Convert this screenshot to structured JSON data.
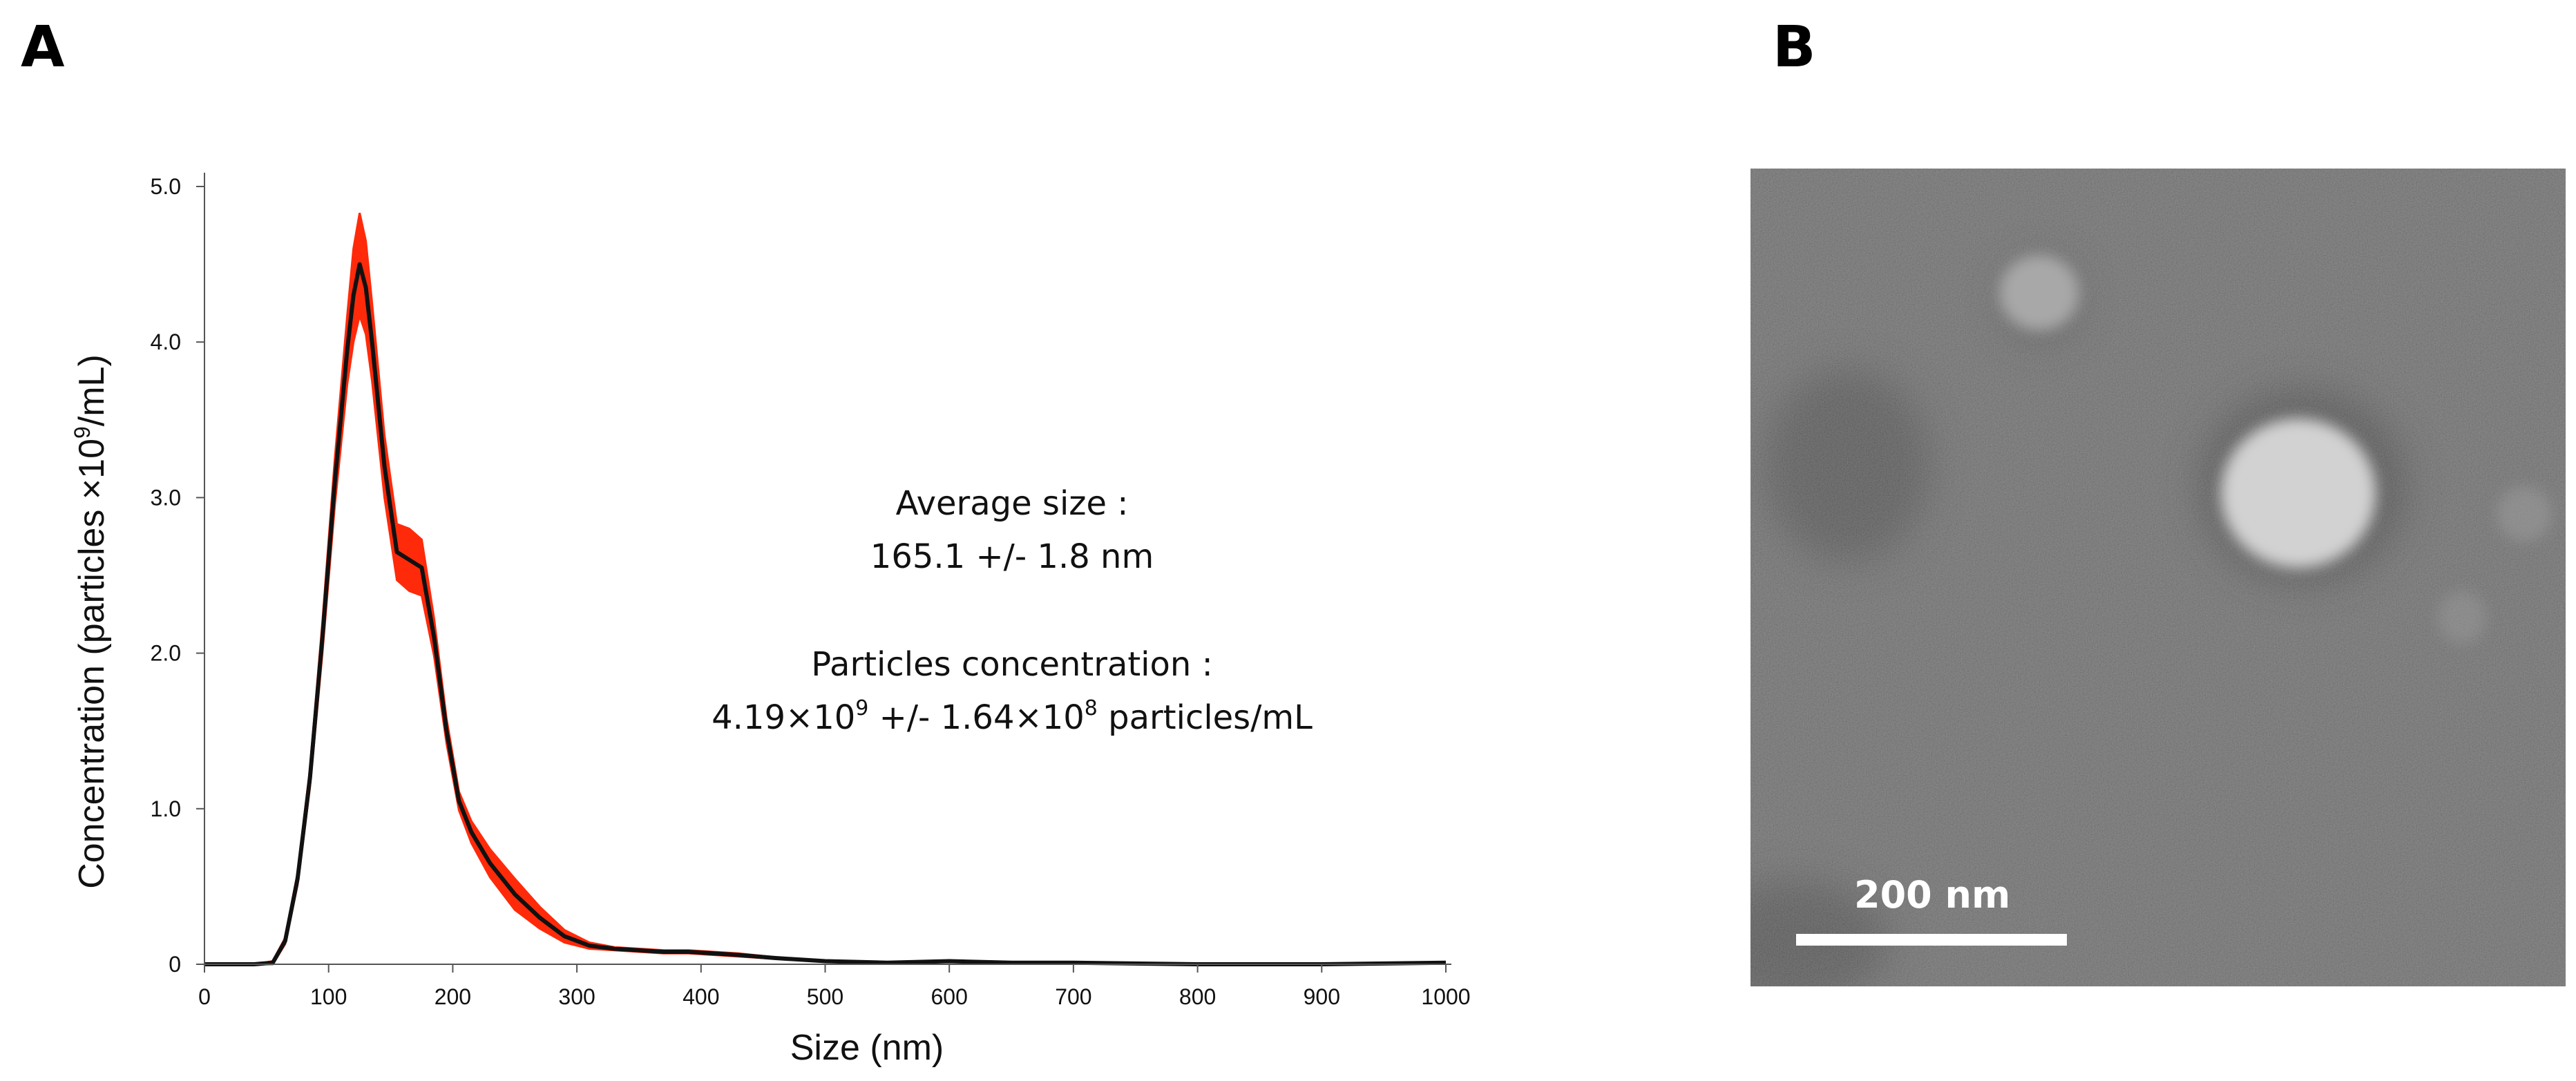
{
  "panel_a_letter": "A",
  "panel_b_letter": "B",
  "annotation": {
    "avg_label": "Average size :",
    "avg_value": "165.1 +/- 1.8 nm",
    "conc_label": "Particles concentration :",
    "conc_mantissa": "4.19×10",
    "conc_exp": "9",
    "conc_mid": " +/- 1.64×10",
    "conc_exp2": "8",
    "conc_unit": " particles/mL"
  },
  "chart_data": {
    "type": "line",
    "xlabel": "Size (nm)",
    "ylabel_prefix": "Concentration (particles ×10",
    "ylabel_sup": "9",
    "ylabel_suffix": "/mL)",
    "xlim": [
      0,
      1000
    ],
    "ylim": [
      0,
      5.0
    ],
    "x_ticks": [
      0,
      100,
      200,
      300,
      400,
      500,
      600,
      700,
      800,
      900,
      1000
    ],
    "y_ticks": [
      0,
      1.0,
      2.0,
      3.0,
      4.0,
      5.0
    ],
    "y_tick_labels": [
      "0",
      "1.0",
      "2.0",
      "3.0",
      "4.0",
      "5.0"
    ],
    "colors": {
      "mean_line": "#111111",
      "error_band": "#ff2a0a"
    },
    "series": [
      {
        "x": [
          0,
          40,
          55,
          65,
          75,
          85,
          95,
          105,
          115,
          120,
          125,
          130,
          135,
          145,
          155,
          165,
          175,
          185,
          195,
          205,
          215,
          230,
          250,
          270,
          290,
          310,
          330,
          350,
          370,
          390,
          410,
          430,
          460,
          500,
          550,
          600,
          650,
          700,
          800,
          900,
          1000
        ],
        "y": [
          0,
          0,
          0.01,
          0.15,
          0.55,
          1.2,
          2.1,
          3.1,
          3.95,
          4.3,
          4.5,
          4.35,
          4.0,
          3.2,
          2.65,
          2.6,
          2.55,
          2.1,
          1.5,
          1.05,
          0.85,
          0.65,
          0.45,
          0.3,
          0.18,
          0.12,
          0.1,
          0.09,
          0.08,
          0.08,
          0.07,
          0.06,
          0.04,
          0.02,
          0.01,
          0.02,
          0.01,
          0.01,
          0.0,
          0.0,
          0.01
        ],
        "err": [
          0,
          0,
          0.01,
          0.02,
          0.04,
          0.06,
          0.1,
          0.15,
          0.22,
          0.3,
          0.33,
          0.3,
          0.25,
          0.2,
          0.18,
          0.2,
          0.18,
          0.12,
          0.08,
          0.06,
          0.07,
          0.09,
          0.1,
          0.07,
          0.04,
          0.02,
          0.01,
          0.01,
          0.01,
          0.01,
          0.01,
          0.01,
          0.005,
          0.005,
          0.005,
          0.005,
          0.005,
          0.005,
          0.0,
          0.0,
          0.0
        ]
      }
    ]
  },
  "tem_image": {
    "scale_bar_label": "200 nm"
  }
}
